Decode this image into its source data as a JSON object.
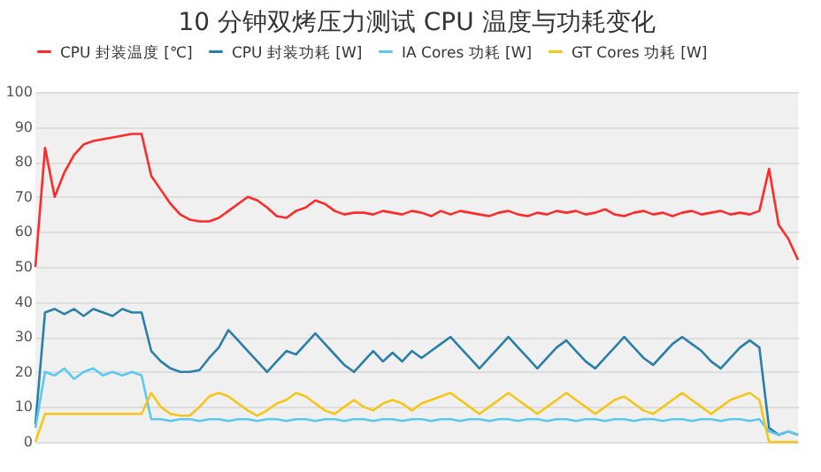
{
  "chart_data": {
    "type": "line",
    "title": "10 分钟双烤压力测试 CPU 温度与功耗变化",
    "categories": [
      null,
      null,
      null,
      null,
      null,
      null,
      null,
      null,
      null,
      null,
      null,
      null,
      null,
      null,
      null,
      null,
      null,
      null,
      null,
      null,
      null,
      null,
      null,
      null,
      null,
      null,
      null,
      null,
      null,
      null,
      null,
      null,
      null,
      null,
      null,
      null,
      null,
      null,
      null,
      null,
      null,
      null,
      null,
      null,
      null,
      null,
      null,
      null,
      null,
      null,
      null,
      null,
      null,
      null,
      null,
      null,
      null,
      null,
      null,
      null,
      null,
      null,
      null,
      null,
      null,
      null,
      null,
      null,
      null,
      null,
      null,
      null,
      null,
      null,
      null,
      null,
      null,
      null,
      null,
      null
    ],
    "series": [
      {
        "name": "CPU 封装温度 [℃]",
        "color": "#ff2a2a",
        "values": [
          50,
          84,
          70,
          77,
          82,
          85,
          86,
          86.5,
          87,
          87.5,
          88,
          88,
          76,
          72,
          68,
          65,
          63.5,
          63,
          63,
          64,
          66,
          68,
          70,
          69,
          67,
          64.5,
          64,
          66,
          67,
          69,
          68,
          66,
          65,
          65.5,
          65.5,
          65,
          66,
          65.5,
          65,
          66,
          65.5,
          64.5,
          66,
          65,
          66,
          65.5,
          65,
          64.5,
          65.5,
          66,
          65,
          64.5,
          65.5,
          65,
          66,
          65.5,
          66,
          65,
          65.5,
          66.5,
          65,
          64.5,
          65.5,
          66,
          65,
          65.5,
          64.5,
          65.5,
          66,
          65,
          65.5,
          66,
          65,
          65.5,
          65,
          66,
          78,
          62,
          58,
          52
        ]
      },
      {
        "name": "CPU 封装功耗 [W]",
        "color": "#2a7fa8",
        "values": [
          5,
          37,
          38,
          36.5,
          38,
          36,
          38,
          37,
          36,
          38,
          37,
          37,
          26,
          23,
          21,
          20,
          20,
          20.5,
          24,
          27,
          32,
          29,
          26,
          23,
          20,
          23,
          26,
          25,
          28,
          31,
          28,
          25,
          22,
          20,
          23,
          26,
          23,
          25.5,
          23,
          26,
          24,
          26,
          28,
          30,
          27,
          24,
          21,
          24,
          27,
          30,
          27,
          24,
          21,
          24,
          27,
          29,
          26,
          23,
          21,
          24,
          27,
          30,
          27,
          24,
          22,
          25,
          28,
          30,
          28,
          26,
          23,
          21,
          24,
          27,
          29,
          27,
          4,
          2,
          3,
          2
        ]
      },
      {
        "name": "IA Cores 功耗 [W]",
        "color": "#5bc8f0",
        "values": [
          4,
          20,
          19,
          21,
          18,
          20,
          21,
          19,
          20,
          19,
          20,
          19,
          6.5,
          6.5,
          6,
          6.5,
          6.5,
          6,
          6.5,
          6.5,
          6,
          6.5,
          6.5,
          6,
          6.5,
          6.5,
          6,
          6.5,
          6.5,
          6,
          6.5,
          6.5,
          6,
          6.5,
          6.5,
          6,
          6.5,
          6.5,
          6,
          6.5,
          6.5,
          6,
          6.5,
          6.5,
          6,
          6.5,
          6.5,
          6,
          6.5,
          6.5,
          6,
          6.5,
          6.5,
          6,
          6.5,
          6.5,
          6,
          6.5,
          6.5,
          6,
          6.5,
          6.5,
          6,
          6.5,
          6.5,
          6,
          6.5,
          6.5,
          6,
          6.5,
          6.5,
          6,
          6.5,
          6.5,
          6,
          6.5,
          3,
          2,
          3,
          2
        ]
      },
      {
        "name": "GT Cores 功耗 [W]",
        "color": "#f5c518",
        "values": [
          0,
          8,
          8,
          8,
          8,
          8,
          8,
          8,
          8,
          8,
          8,
          8,
          14,
          10,
          8,
          7.5,
          7.5,
          10,
          13,
          14,
          13,
          11,
          9,
          7.5,
          9,
          11,
          12,
          14,
          13,
          11,
          9,
          8,
          10,
          12,
          10,
          9,
          11,
          12,
          11,
          9,
          11,
          12,
          13,
          14,
          12,
          10,
          8,
          10,
          12,
          14,
          12,
          10,
          8,
          10,
          12,
          14,
          12,
          10,
          8,
          10,
          12,
          13,
          11,
          9,
          8,
          10,
          12,
          14,
          12,
          10,
          8,
          10,
          12,
          13,
          14,
          12,
          0,
          0,
          0,
          0
        ]
      }
    ],
    "ylim": [
      0,
      100
    ],
    "yticks": [
      0,
      10,
      20,
      30,
      40,
      50,
      60,
      70,
      80,
      90,
      100
    ],
    "grid": "y",
    "legend": "top",
    "line_style": "solid"
  }
}
